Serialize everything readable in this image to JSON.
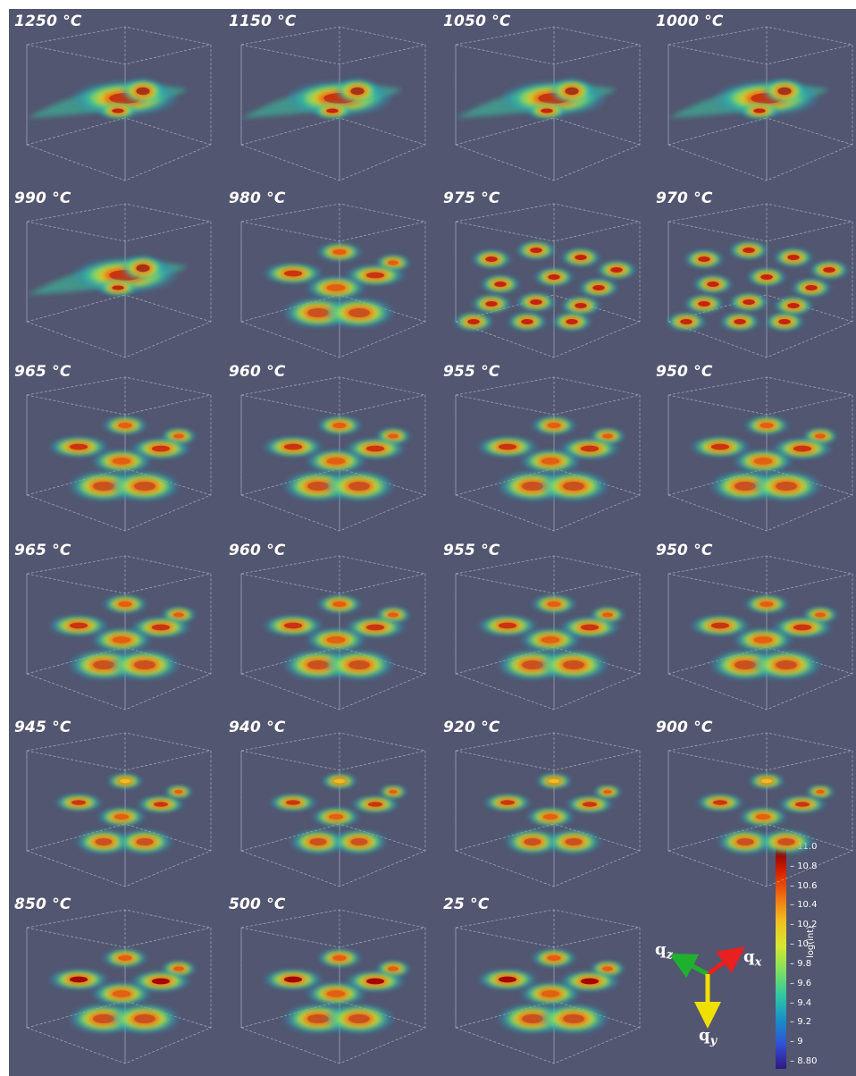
{
  "panels": [
    {
      "temperature": "1250 °C",
      "pattern": "single"
    },
    {
      "temperature": "1150 °C",
      "pattern": "single"
    },
    {
      "temperature": "1050 °C",
      "pattern": "single"
    },
    {
      "temperature": "1000 °C",
      "pattern": "single"
    },
    {
      "temperature": "990 °C",
      "pattern": "single"
    },
    {
      "temperature": "980 °C",
      "pattern": "multi"
    },
    {
      "temperature": "975 °C",
      "pattern": "scattered"
    },
    {
      "temperature": "970 °C",
      "pattern": "scattered"
    },
    {
      "temperature": "965 °C",
      "pattern": "multi"
    },
    {
      "temperature": "960 °C",
      "pattern": "multi"
    },
    {
      "temperature": "955 °C",
      "pattern": "multi"
    },
    {
      "temperature": "950 °C",
      "pattern": "multi"
    },
    {
      "temperature": "965 °C",
      "pattern": "multi"
    },
    {
      "temperature": "960 °C",
      "pattern": "multi"
    },
    {
      "temperature": "955 °C",
      "pattern": "multi"
    },
    {
      "temperature": "950 °C",
      "pattern": "multi"
    },
    {
      "temperature": "945 °C",
      "pattern": "faint"
    },
    {
      "temperature": "940 °C",
      "pattern": "faint"
    },
    {
      "temperature": "920 °C",
      "pattern": "faint"
    },
    {
      "temperature": "900 °C",
      "pattern": "faint"
    },
    {
      "temperature": "850 °C",
      "pattern": "strong"
    },
    {
      "temperature": "500 °C",
      "pattern": "strong"
    },
    {
      "temperature": "25 °C",
      "pattern": "strong"
    }
  ],
  "colorbar": {
    "title": "log(int)",
    "ticks": [
      "11.0",
      "10.8",
      "10.6",
      "10.4",
      "10.2",
      "10",
      "9.8",
      "9.6",
      "9.4",
      "9.2",
      "9",
      "8.80"
    ],
    "colors": [
      "#7a0000",
      "#d62000",
      "#f07010",
      "#f0c020",
      "#d8e830",
      "#80e060",
      "#30c8a0",
      "#1890c8",
      "#3050d8",
      "#301880"
    ]
  },
  "axes": {
    "qx": {
      "label": "q",
      "subscript": "x",
      "color": "#e82020"
    },
    "qy": {
      "label": "q",
      "subscript": "y",
      "color": "#f0e000"
    },
    "qz": {
      "label": "q",
      "subscript": "z",
      "color": "#20b030"
    }
  },
  "background_color": "#525670"
}
